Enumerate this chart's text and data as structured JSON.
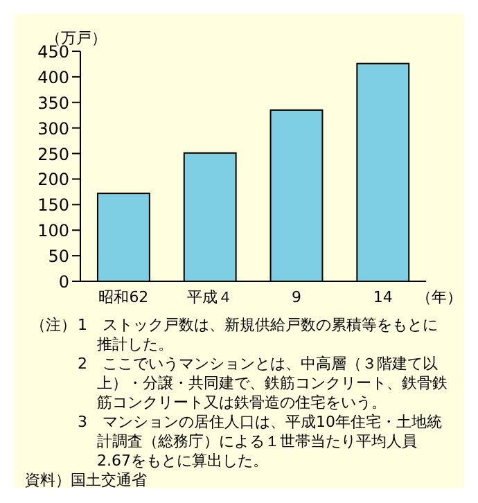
{
  "chart_data": {
    "type": "bar",
    "ylabel": "（万戸）",
    "xlabel": "（年）",
    "categories": [
      "昭和62",
      "平成４",
      "9",
      "14"
    ],
    "values": [
      172,
      251,
      335,
      426
    ],
    "color": "#7ecfe3",
    "ylim": [
      0,
      450
    ],
    "yticks": [
      0,
      50,
      100,
      150,
      200,
      250,
      300,
      350,
      400,
      450
    ],
    "annotations": [
      "（注）",
      "1　ストック戸数は、新規供給戸数の累積等をもとに推計した。",
      "2　ここでいうマンションとは、中高層（３階建て以上）・分譲・共同建で、鉄筋コンクリート、鉄骨鉄筋コンクリート又は鉄骨造の住宅をいう。",
      "3　マンションの居住人口は、平成10年住宅・土地統計調査（総務庁）による１世帯当たり平均人員2.67をもとに算出した。",
      "資料）国土交通省"
    ]
  }
}
